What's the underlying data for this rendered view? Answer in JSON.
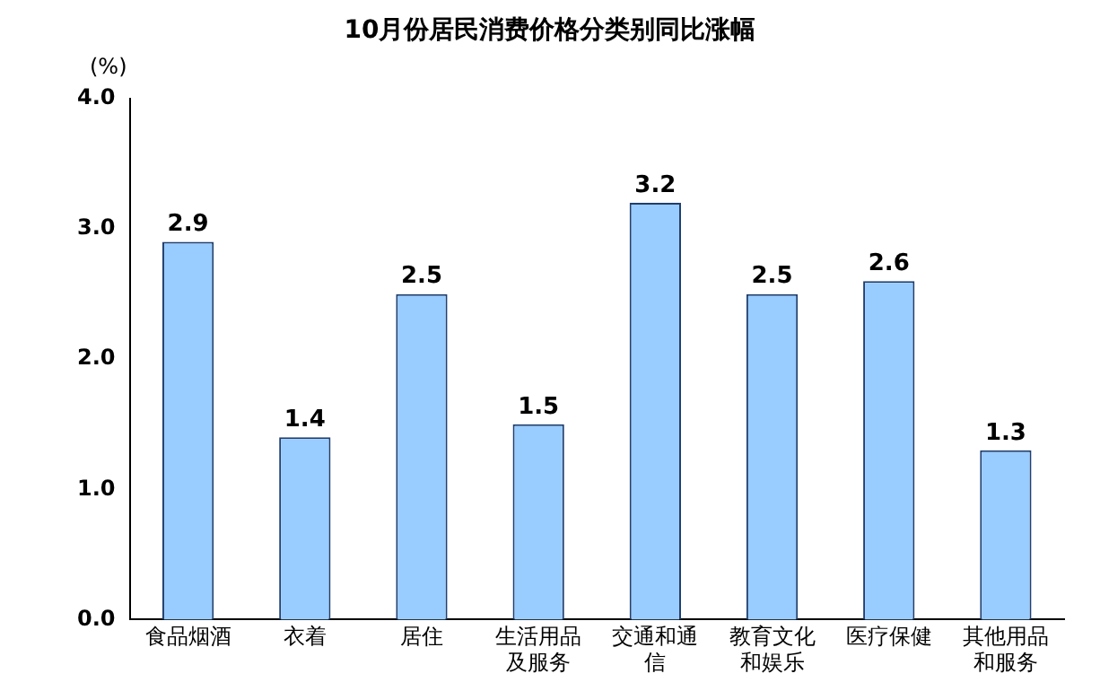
{
  "chart_data": {
    "type": "bar",
    "title": "10月份居民消费价格分类别同比涨幅",
    "ylabel": "(%)",
    "categories": [
      "食品烟酒",
      "衣着",
      "居住",
      "生活用品及服务",
      "交通和通信",
      "教育文化和娱乐",
      "医疗保健",
      "其他用品和服务"
    ],
    "values": [
      2.9,
      1.4,
      2.5,
      1.5,
      3.2,
      2.5,
      2.6,
      1.3
    ],
    "color": "#99ccff",
    "ylim": [
      0,
      4
    ],
    "yticks": [
      {
        "value": 0,
        "label": "0.0"
      },
      {
        "value": 1,
        "label": "1.0"
      },
      {
        "value": 2,
        "label": "2.0"
      },
      {
        "value": 3,
        "label": "3.0"
      },
      {
        "value": 4,
        "label": "4.0"
      }
    ],
    "grid": false,
    "data_labels": true
  }
}
